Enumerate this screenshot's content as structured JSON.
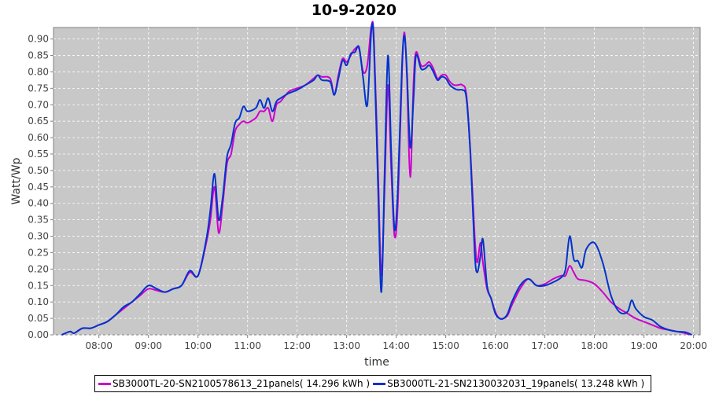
{
  "chart_data": {
    "type": "line",
    "title": "10-9-2020",
    "xlabel": "time",
    "ylabel": "Watt/Wp",
    "xlim": [
      "07:05",
      "20:08"
    ],
    "ylim": [
      0,
      0.935
    ],
    "x_ticks": [
      "08:00",
      "09:00",
      "10:00",
      "11:00",
      "12:00",
      "13:00",
      "14:00",
      "15:00",
      "16:00",
      "17:00",
      "18:00",
      "19:00",
      "20:00"
    ],
    "y_ticks": [
      "0.00",
      "0.05",
      "0.10",
      "0.15",
      "0.20",
      "0.25",
      "0.30",
      "0.35",
      "0.40",
      "0.45",
      "0.50",
      "0.55",
      "0.60",
      "0.65",
      "0.70",
      "0.75",
      "0.80",
      "0.85",
      "0.90"
    ],
    "grid": true,
    "legend_position": "bottom",
    "background": "#c8c8c8",
    "series": [
      {
        "name": "SB3000TL-20-SN2100578613_21panels( 14.296 kWh )",
        "color": "#cc00cc",
        "points": [
          [
            "07:15",
            0
          ],
          [
            "07:25",
            0.01
          ],
          [
            "07:30",
            0.005
          ],
          [
            "07:40",
            0.02
          ],
          [
            "07:50",
            0.02
          ],
          [
            "08:00",
            0.03
          ],
          [
            "08:10",
            0.04
          ],
          [
            "08:20",
            0.06
          ],
          [
            "08:30",
            0.08
          ],
          [
            "08:40",
            0.1
          ],
          [
            "08:50",
            0.12
          ],
          [
            "09:00",
            0.14
          ],
          [
            "09:10",
            0.135
          ],
          [
            "09:20",
            0.13
          ],
          [
            "09:30",
            0.14
          ],
          [
            "09:40",
            0.15
          ],
          [
            "09:50",
            0.19
          ],
          [
            "10:00",
            0.18
          ],
          [
            "10:10",
            0.28
          ],
          [
            "10:15",
            0.35
          ],
          [
            "10:20",
            0.45
          ],
          [
            "10:25",
            0.31
          ],
          [
            "10:30",
            0.4
          ],
          [
            "10:35",
            0.52
          ],
          [
            "10:40",
            0.55
          ],
          [
            "10:45",
            0.62
          ],
          [
            "10:50",
            0.64
          ],
          [
            "10:55",
            0.65
          ],
          [
            "11:00",
            0.645
          ],
          [
            "11:10",
            0.66
          ],
          [
            "11:15",
            0.68
          ],
          [
            "11:20",
            0.68
          ],
          [
            "11:25",
            0.69
          ],
          [
            "11:30",
            0.65
          ],
          [
            "11:35",
            0.7
          ],
          [
            "11:40",
            0.71
          ],
          [
            "11:50",
            0.74
          ],
          [
            "12:00",
            0.75
          ],
          [
            "12:10",
            0.76
          ],
          [
            "12:20",
            0.78
          ],
          [
            "12:25",
            0.79
          ],
          [
            "12:30",
            0.785
          ],
          [
            "12:40",
            0.78
          ],
          [
            "12:45",
            0.73
          ],
          [
            "12:50",
            0.79
          ],
          [
            "12:55",
            0.84
          ],
          [
            "13:00",
            0.83
          ],
          [
            "13:05",
            0.85
          ],
          [
            "13:10",
            0.87
          ],
          [
            "13:15",
            0.87
          ],
          [
            "13:20",
            0.8
          ],
          [
            "13:25",
            0.82
          ],
          [
            "13:30",
            0.94
          ],
          [
            "13:33",
            0.9
          ],
          [
            "13:38",
            0.5
          ],
          [
            "13:42",
            0.18
          ],
          [
            "13:46",
            0.45
          ],
          [
            "13:50",
            0.76
          ],
          [
            "13:54",
            0.5
          ],
          [
            "13:58",
            0.3
          ],
          [
            "14:02",
            0.4
          ],
          [
            "14:07",
            0.8
          ],
          [
            "14:10",
            0.92
          ],
          [
            "14:13",
            0.78
          ],
          [
            "14:17",
            0.48
          ],
          [
            "14:21",
            0.77
          ],
          [
            "14:24",
            0.86
          ],
          [
            "14:30",
            0.82
          ],
          [
            "14:35",
            0.82
          ],
          [
            "14:40",
            0.83
          ],
          [
            "14:45",
            0.81
          ],
          [
            "14:50",
            0.78
          ],
          [
            "14:55",
            0.79
          ],
          [
            "15:00",
            0.79
          ],
          [
            "15:05",
            0.77
          ],
          [
            "15:10",
            0.76
          ],
          [
            "15:15",
            0.76
          ],
          [
            "15:20",
            0.76
          ],
          [
            "15:25",
            0.73
          ],
          [
            "15:30",
            0.55
          ],
          [
            "15:35",
            0.3
          ],
          [
            "15:38",
            0.22
          ],
          [
            "15:42",
            0.28
          ],
          [
            "15:45",
            0.22
          ],
          [
            "15:50",
            0.14
          ],
          [
            "15:55",
            0.11
          ],
          [
            "16:00",
            0.07
          ],
          [
            "16:05",
            0.05
          ],
          [
            "16:10",
            0.05
          ],
          [
            "16:15",
            0.06
          ],
          [
            "16:20",
            0.09
          ],
          [
            "16:30",
            0.14
          ],
          [
            "16:40",
            0.17
          ],
          [
            "16:50",
            0.15
          ],
          [
            "17:00",
            0.155
          ],
          [
            "17:10",
            0.17
          ],
          [
            "17:20",
            0.18
          ],
          [
            "17:25",
            0.18
          ],
          [
            "17:30",
            0.21
          ],
          [
            "17:35",
            0.19
          ],
          [
            "17:40",
            0.17
          ],
          [
            "17:50",
            0.165
          ],
          [
            "18:00",
            0.155
          ],
          [
            "18:10",
            0.13
          ],
          [
            "18:20",
            0.1
          ],
          [
            "18:30",
            0.08
          ],
          [
            "18:40",
            0.065
          ],
          [
            "18:50",
            0.05
          ],
          [
            "19:00",
            0.04
          ],
          [
            "19:10",
            0.03
          ],
          [
            "19:20",
            0.02
          ],
          [
            "19:30",
            0.015
          ],
          [
            "19:40",
            0.01
          ],
          [
            "19:50",
            0.005
          ],
          [
            "19:55",
            0
          ]
        ]
      },
      {
        "name": "SB3000TL-21-SN2130032031_19panels( 13.248 kWh )",
        "color": "#0033cc",
        "points": [
          [
            "07:15",
            0
          ],
          [
            "07:25",
            0.01
          ],
          [
            "07:30",
            0.005
          ],
          [
            "07:40",
            0.02
          ],
          [
            "07:50",
            0.02
          ],
          [
            "08:00",
            0.03
          ],
          [
            "08:10",
            0.04
          ],
          [
            "08:20",
            0.06
          ],
          [
            "08:30",
            0.085
          ],
          [
            "08:40",
            0.1
          ],
          [
            "08:50",
            0.125
          ],
          [
            "09:00",
            0.15
          ],
          [
            "09:10",
            0.14
          ],
          [
            "09:20",
            0.13
          ],
          [
            "09:30",
            0.14
          ],
          [
            "09:40",
            0.15
          ],
          [
            "09:50",
            0.195
          ],
          [
            "10:00",
            0.18
          ],
          [
            "10:10",
            0.29
          ],
          [
            "10:15",
            0.38
          ],
          [
            "10:20",
            0.49
          ],
          [
            "10:25",
            0.35
          ],
          [
            "10:30",
            0.42
          ],
          [
            "10:35",
            0.54
          ],
          [
            "10:40",
            0.58
          ],
          [
            "10:45",
            0.645
          ],
          [
            "10:50",
            0.66
          ],
          [
            "10:55",
            0.695
          ],
          [
            "11:00",
            0.68
          ],
          [
            "11:10",
            0.69
          ],
          [
            "11:15",
            0.715
          ],
          [
            "11:20",
            0.69
          ],
          [
            "11:25",
            0.72
          ],
          [
            "11:30",
            0.68
          ],
          [
            "11:35",
            0.71
          ],
          [
            "11:40",
            0.72
          ],
          [
            "11:50",
            0.735
          ],
          [
            "12:00",
            0.745
          ],
          [
            "12:10",
            0.76
          ],
          [
            "12:20",
            0.775
          ],
          [
            "12:25",
            0.79
          ],
          [
            "12:30",
            0.775
          ],
          [
            "12:40",
            0.77
          ],
          [
            "12:45",
            0.73
          ],
          [
            "12:50",
            0.78
          ],
          [
            "12:55",
            0.835
          ],
          [
            "13:00",
            0.82
          ],
          [
            "13:05",
            0.855
          ],
          [
            "13:10",
            0.86
          ],
          [
            "13:15",
            0.875
          ],
          [
            "13:20",
            0.78
          ],
          [
            "13:25",
            0.7
          ],
          [
            "13:30",
            0.93
          ],
          [
            "13:33",
            0.88
          ],
          [
            "13:38",
            0.45
          ],
          [
            "13:42",
            0.13
          ],
          [
            "13:46",
            0.5
          ],
          [
            "13:50",
            0.85
          ],
          [
            "13:54",
            0.55
          ],
          [
            "13:58",
            0.32
          ],
          [
            "14:02",
            0.45
          ],
          [
            "14:07",
            0.82
          ],
          [
            "14:10",
            0.91
          ],
          [
            "14:13",
            0.8
          ],
          [
            "14:17",
            0.57
          ],
          [
            "14:21",
            0.72
          ],
          [
            "14:24",
            0.85
          ],
          [
            "14:30",
            0.81
          ],
          [
            "14:35",
            0.81
          ],
          [
            "14:40",
            0.82
          ],
          [
            "14:45",
            0.8
          ],
          [
            "14:50",
            0.775
          ],
          [
            "14:55",
            0.785
          ],
          [
            "15:00",
            0.78
          ],
          [
            "15:05",
            0.76
          ],
          [
            "15:10",
            0.75
          ],
          [
            "15:15",
            0.745
          ],
          [
            "15:20",
            0.745
          ],
          [
            "15:25",
            0.72
          ],
          [
            "15:30",
            0.54
          ],
          [
            "15:35",
            0.25
          ],
          [
            "15:38",
            0.19
          ],
          [
            "15:42",
            0.24
          ],
          [
            "15:45",
            0.29
          ],
          [
            "15:50",
            0.15
          ],
          [
            "15:55",
            0.11
          ],
          [
            "16:00",
            0.065
          ],
          [
            "16:05",
            0.05
          ],
          [
            "16:10",
            0.05
          ],
          [
            "16:15",
            0.065
          ],
          [
            "16:20",
            0.1
          ],
          [
            "16:30",
            0.15
          ],
          [
            "16:40",
            0.17
          ],
          [
            "16:50",
            0.15
          ],
          [
            "17:00",
            0.15
          ],
          [
            "17:10",
            0.16
          ],
          [
            "17:20",
            0.175
          ],
          [
            "17:25",
            0.2
          ],
          [
            "17:30",
            0.3
          ],
          [
            "17:35",
            0.23
          ],
          [
            "17:40",
            0.225
          ],
          [
            "17:45",
            0.205
          ],
          [
            "17:50",
            0.26
          ],
          [
            "18:00",
            0.28
          ],
          [
            "18:10",
            0.22
          ],
          [
            "18:20",
            0.12
          ],
          [
            "18:30",
            0.07
          ],
          [
            "18:40",
            0.07
          ],
          [
            "18:45",
            0.105
          ],
          [
            "18:50",
            0.08
          ],
          [
            "19:00",
            0.055
          ],
          [
            "19:10",
            0.045
          ],
          [
            "19:20",
            0.025
          ],
          [
            "19:30",
            0.015
          ],
          [
            "19:40",
            0.01
          ],
          [
            "19:50",
            0.008
          ],
          [
            "19:58",
            0
          ]
        ]
      }
    ]
  }
}
